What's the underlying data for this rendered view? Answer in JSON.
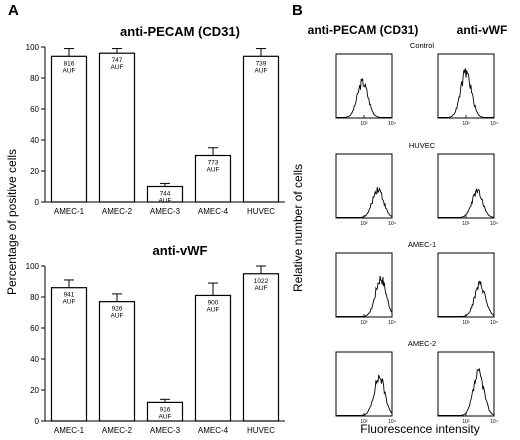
{
  "panel_a": {
    "letter": "A",
    "ylabel": "Percentage of positive cells",
    "y_ticks": [
      "0",
      "20",
      "40",
      "60",
      "80",
      "100"
    ]
  },
  "panel_b": {
    "letter": "B",
    "col_titles": [
      "anti-PECAM (CD31)",
      "anti-vWF"
    ],
    "row_labels": [
      "Control",
      "HUVEC",
      "AMEC-1",
      "AMEC-2"
    ],
    "ylabel": "Relative number of cells",
    "xlabel": "Fluorescence intensity",
    "hist_ticks": [
      "10⁰",
      "10²",
      "10⁴"
    ]
  },
  "chart_data": [
    {
      "type": "bar",
      "title": "anti-PECAM (CD31)",
      "ylabel": "Percentage of positive cells",
      "ylim": [
        0,
        100
      ],
      "categories": [
        "AMEC-1",
        "AMEC-2",
        "AMEC-3",
        "AMEC-4",
        "HUVEC"
      ],
      "values": [
        94,
        96,
        10,
        30,
        94
      ],
      "errors": [
        5,
        3,
        2,
        5,
        5
      ],
      "annotations": [
        "816\nAUF",
        "747\nAUF",
        "744\nAUF",
        "773\nAUF",
        "739\nAUF"
      ]
    },
    {
      "type": "bar",
      "title": "anti-vWF",
      "ylabel": "Percentage of positive cells",
      "ylim": [
        0,
        100
      ],
      "categories": [
        "AMEC-1",
        "AMEC-2",
        "AMEC-3",
        "AMEC-4",
        "HUVEC"
      ],
      "values": [
        86,
        77,
        12,
        81,
        95
      ],
      "errors": [
        5,
        5,
        2,
        8,
        5
      ],
      "annotations": [
        "941\nAUF",
        "926\nAUF",
        "916\nAUF",
        "900\nAUF",
        "1022\nAUF"
      ]
    },
    {
      "type": "area",
      "title": "Flow cytometry histograms",
      "xlabel": "Fluorescence intensity",
      "ylabel": "Relative number of cells",
      "x_scale": "log",
      "xlim": [
        1,
        10000
      ],
      "columns": [
        "anti-PECAM (CD31)",
        "anti-vWF"
      ],
      "rows": [
        "Control",
        "HUVEC",
        "AMEC-1",
        "AMEC-2"
      ],
      "peaks_log10": [
        [
          1.9,
          2.0
        ],
        [
          3.0,
          2.8
        ],
        [
          3.2,
          3.0
        ],
        [
          3.1,
          2.9
        ]
      ],
      "peak_heights": [
        [
          0.55,
          0.7
        ],
        [
          0.45,
          0.4
        ],
        [
          0.6,
          0.5
        ],
        [
          0.6,
          0.65
        ]
      ]
    }
  ]
}
